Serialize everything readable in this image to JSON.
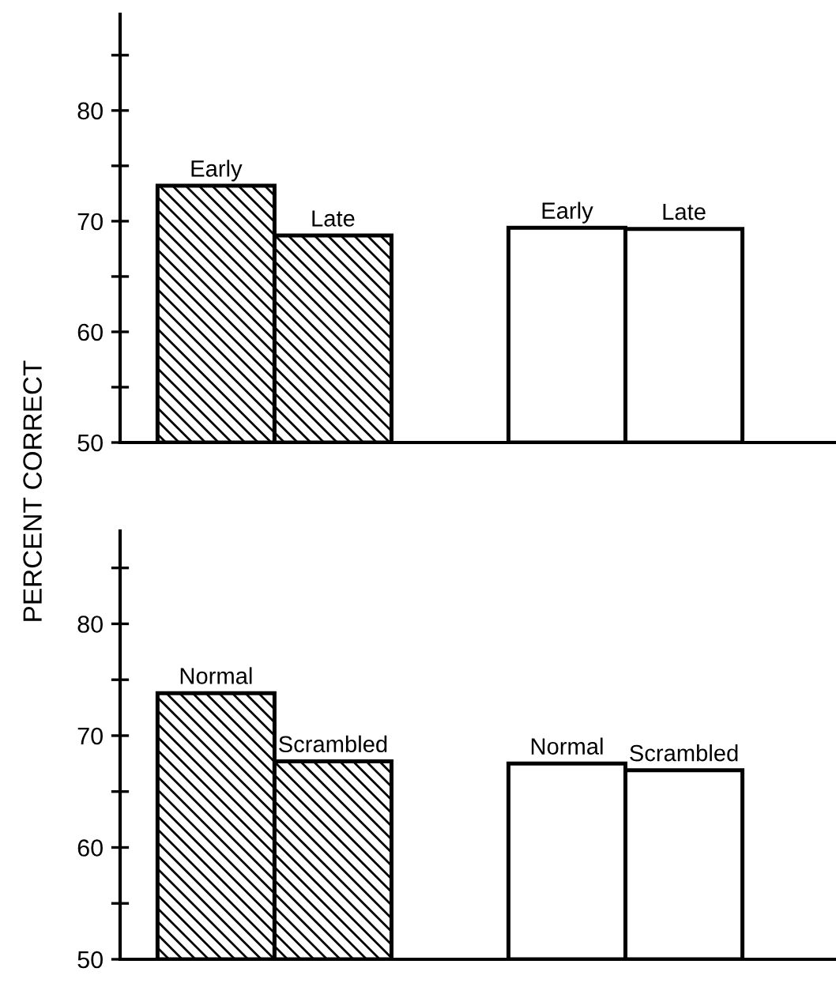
{
  "chart_data": [
    {
      "type": "bar",
      "ylabel": "PERCENT CORRECT",
      "categories": [
        "Early",
        "Late",
        null,
        "Early",
        "Late"
      ],
      "series": [
        {
          "color": "#000000",
          "values": [
            73.2,
            68.7,
            null,
            null,
            null
          ]
        },
        {
          "color": "#ffffff",
          "values": [
            null,
            null,
            null,
            69.4,
            69.3
          ]
        }
      ],
      "ylim": [
        50,
        88.7
      ],
      "yticks": [
        50,
        {
          "value": 55,
          "label": null
        },
        60,
        {
          "value": 65,
          "label": null
        },
        70,
        {
          "value": 75,
          "label": null
        },
        80,
        {
          "value": 85,
          "label": null
        }
      ],
      "tick_labels": "y"
    },
    {
      "type": "bar",
      "categories": [
        "Normal",
        "Scrambled",
        null,
        "Normal",
        "Scrambled"
      ],
      "series": [
        {
          "color": "#000000",
          "values": [
            73.8,
            67.7,
            null,
            null,
            null
          ]
        },
        {
          "color": "#ffffff",
          "values": [
            null,
            null,
            null,
            67.5,
            66.9
          ]
        }
      ],
      "ylim": [
        50,
        88.3
      ],
      "yticks": [
        50,
        {
          "value": 55,
          "label": null
        },
        60,
        {
          "value": 65,
          "label": null
        },
        70,
        {
          "value": 75,
          "label": null
        },
        80,
        {
          "value": 85,
          "label": null
        }
      ],
      "tick_labels": "y"
    }
  ]
}
